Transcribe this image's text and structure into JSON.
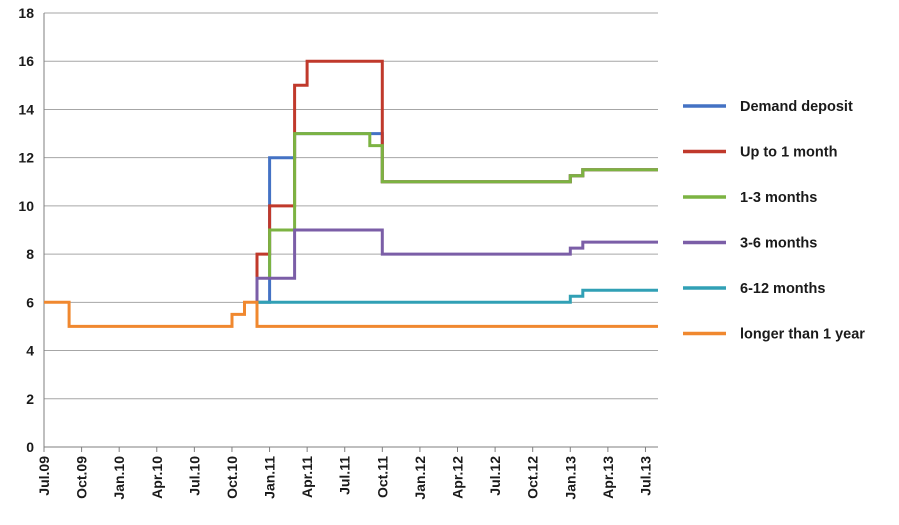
{
  "chart_data": {
    "type": "line",
    "title": "",
    "xlabel": "",
    "ylabel": "",
    "ylim": [
      0,
      18
    ],
    "yticks": [
      0,
      2,
      4,
      6,
      8,
      10,
      12,
      14,
      16,
      18
    ],
    "xlim": [
      "2009-07",
      "2013-08"
    ],
    "xticks": [
      "Jul.09",
      "Oct.09",
      "Jan.10",
      "Apr.10",
      "Jul.10",
      "Oct.10",
      "Jan.11",
      "Apr.11",
      "Jul.11",
      "Oct.11",
      "Jan.12",
      "Apr.12",
      "Jul.12",
      "Oct.12",
      "Jan.13",
      "Apr.13",
      "Jul.13"
    ],
    "grid": "horizontal",
    "legend": "right",
    "step": true,
    "series": [
      {
        "name": "Demand deposit",
        "color": "#4472c4",
        "points": [
          [
            "2010-12",
            6
          ],
          [
            "2011-01",
            12
          ],
          [
            "2011-03",
            12
          ],
          [
            "2011-03",
            13
          ],
          [
            "2011-09",
            13
          ],
          [
            "2011-10",
            12.5
          ],
          [
            "2011-10",
            11
          ],
          [
            "2012-12",
            11
          ],
          [
            "2013-01",
            11.25
          ],
          [
            "2013-02",
            11.5
          ],
          [
            "2013-08",
            11.5
          ]
        ]
      },
      {
        "name": "Up to 1 month",
        "color": "#c0392b",
        "points": [
          [
            "2010-12",
            6
          ],
          [
            "2010-12",
            8
          ],
          [
            "2011-01",
            8
          ],
          [
            "2011-01",
            10
          ],
          [
            "2011-03",
            10
          ],
          [
            "2011-03",
            15
          ],
          [
            "2011-04",
            15
          ],
          [
            "2011-04",
            16
          ],
          [
            "2011-10",
            16
          ],
          [
            "2011-10",
            11
          ],
          [
            "2012-12",
            11
          ],
          [
            "2013-01",
            11.25
          ],
          [
            "2013-02",
            11.5
          ],
          [
            "2013-08",
            11.5
          ]
        ]
      },
      {
        "name": "1-3 months",
        "color": "#7cb342",
        "points": [
          [
            "2011-01",
            7
          ],
          [
            "2011-01",
            9
          ],
          [
            "2011-03",
            9
          ],
          [
            "2011-03",
            13
          ],
          [
            "2011-09",
            13
          ],
          [
            "2011-09",
            12.5
          ],
          [
            "2011-10",
            12.5
          ],
          [
            "2011-10",
            11
          ],
          [
            "2012-12",
            11
          ],
          [
            "2013-01",
            11.25
          ],
          [
            "2013-02",
            11.5
          ],
          [
            "2013-08",
            11.5
          ]
        ]
      },
      {
        "name": "3-6 months",
        "color": "#7b5ea7",
        "points": [
          [
            "2010-12",
            6
          ],
          [
            "2010-12",
            7
          ],
          [
            "2011-03",
            7
          ],
          [
            "2011-03",
            9
          ],
          [
            "2011-10",
            9
          ],
          [
            "2011-10",
            8
          ],
          [
            "2012-12",
            8
          ],
          [
            "2013-01",
            8.25
          ],
          [
            "2013-02",
            8.5
          ],
          [
            "2013-08",
            8.5
          ]
        ]
      },
      {
        "name": "6-12 months",
        "color": "#31a0b5",
        "points": [
          [
            "2010-12",
            6
          ],
          [
            "2012-12",
            6
          ],
          [
            "2013-01",
            6.25
          ],
          [
            "2013-02",
            6.5
          ],
          [
            "2013-08",
            6.5
          ]
        ]
      },
      {
        "name": "longer than 1 year",
        "color": "#f0882f",
        "points": [
          [
            "2009-07",
            6
          ],
          [
            "2009-09",
            6
          ],
          [
            "2009-09",
            5
          ],
          [
            "2010-10",
            5
          ],
          [
            "2010-10",
            5.5
          ],
          [
            "2010-11",
            5.5
          ],
          [
            "2010-11",
            6
          ],
          [
            "2010-12",
            6
          ],
          [
            "2010-12",
            5
          ],
          [
            "2013-08",
            5
          ]
        ]
      }
    ]
  }
}
